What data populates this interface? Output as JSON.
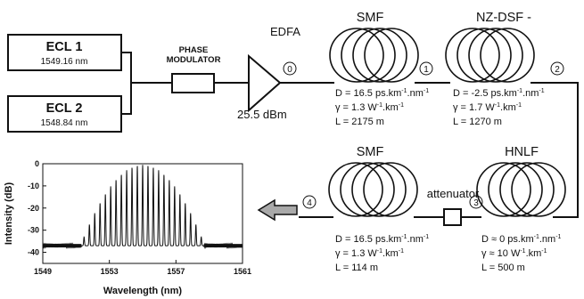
{
  "sources": {
    "ecl1": {
      "name": "ECL 1",
      "wavelength": "1549.16 nm"
    },
    "ecl2": {
      "name": "ECL 2",
      "wavelength": "1548.84 nm"
    }
  },
  "phase_modulator": {
    "line1": "PHASE",
    "line2": "MODULATOR"
  },
  "edfa": {
    "label": "EDFA",
    "power": "25.5 dBm"
  },
  "points": [
    "0",
    "1",
    "2",
    "3",
    "4"
  ],
  "fibers": {
    "smf1": {
      "name": "SMF",
      "d_main": "D = 16.5 ps.km",
      "d_sup1": "-1",
      "d_mid": ".nm",
      "d_sup2": "-1",
      "g_main": "γ = 1.3 W",
      "g_sup1": "-1",
      "g_mid": ".km",
      "g_sup2": "-1",
      "l": "L = 2175 m"
    },
    "nzdsf": {
      "name": "NZ-DSF -",
      "d_main": "D = -2.5 ps.km",
      "d_sup1": "-1",
      "d_mid": ".nm",
      "d_sup2": "-1",
      "g_main": "γ = 1.7 W",
      "g_sup1": "-1",
      "g_mid": ".km",
      "g_sup2": "-1",
      "l": "L = 1270 m"
    },
    "smf2": {
      "name": "SMF",
      "d_main": "D = 16.5 ps.km",
      "d_sup1": "-1",
      "d_mid": ".nm",
      "d_sup2": "-1",
      "g_main": "γ = 1.3 W",
      "g_sup1": "-1",
      "g_mid": ".km",
      "g_sup2": "-1",
      "l": "L = 114 m"
    },
    "hnlf": {
      "name": "HNLF",
      "d_main": "D ≈  0 ps.km",
      "d_sup1": "-1",
      "d_mid": ".nm",
      "d_sup2": "-1",
      "g_main": "γ ≈ 10 W",
      "g_sup1": "-1",
      "g_mid": ".km",
      "g_sup2": "-1",
      "l": "L = 500 m"
    }
  },
  "attenuator": {
    "label": "attenuator"
  },
  "chart_data": {
    "type": "line",
    "xlabel": "Wavelength (nm)",
    "ylabel": "Intensity (dB)",
    "xlim": [
      1549,
      1561
    ],
    "ylim": [
      -45,
      0
    ],
    "x_ticks": [
      "1549",
      "1553",
      "1557",
      "1561"
    ],
    "y_ticks": [
      "0",
      "-10",
      "-20",
      "-30",
      "-40"
    ],
    "comb_center_nm": 1555,
    "line_spacing_nm": 0.32,
    "peak_dB": -0.5,
    "noise_floor_dB": -37
  },
  "colors": {
    "line": "#111111",
    "arrow_fill": "#a9a9a9"
  }
}
